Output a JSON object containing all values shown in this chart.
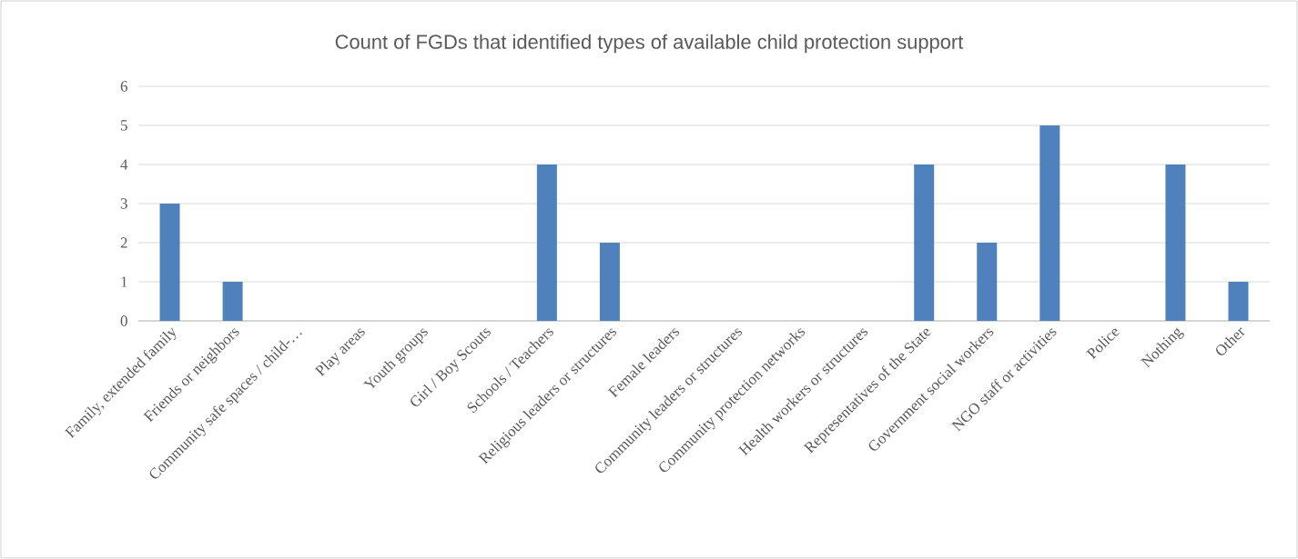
{
  "chart_data": {
    "type": "bar",
    "title": "Count of FGDs that identified types of available child protection support",
    "categories": [
      "Family, extended family",
      "Friends or neighbors",
      "Community safe spaces / child-…",
      "Play areas",
      "Youth groups",
      "Girl / Boy Scouts",
      "Schools / Teachers",
      "Religious leaders or structures",
      "Female leaders",
      "Community leaders or structures",
      "Community protection networks",
      "Health workers or structures",
      "Representatives of the State",
      "Government social workers",
      "NGO staff or activities",
      "Police",
      "Nothing",
      "Other"
    ],
    "values": [
      3,
      1,
      0,
      0,
      0,
      0,
      4,
      2,
      0,
      0,
      0,
      0,
      4,
      2,
      5,
      0,
      4,
      1
    ],
    "color": "#4f81bd",
    "ylim": [
      0,
      6
    ],
    "yticks": [
      0,
      1,
      2,
      3,
      4,
      5,
      6
    ],
    "grid": "y"
  }
}
